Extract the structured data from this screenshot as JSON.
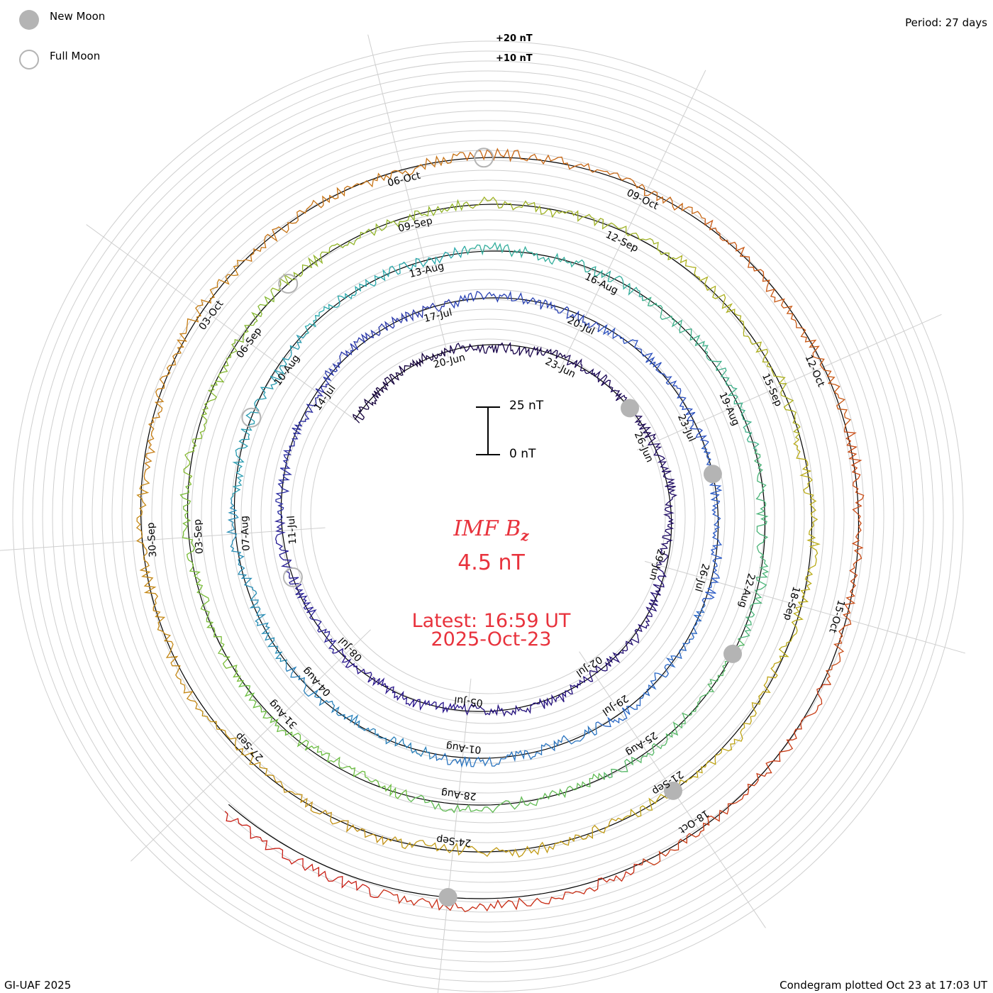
{
  "legend": {
    "new_moon_label": "New Moon",
    "full_moon_label": "Full Moon",
    "new_moon_color": "#b4b4b4",
    "full_moon_color": "#b4b4b4",
    "new_moon_icon": "filled-grey-circle",
    "full_moon_icon": "open-grey-circle"
  },
  "header": {
    "period_label": "Period: 27 days"
  },
  "footer": {
    "credit": "GI-UAF 2025",
    "plotted": "Condegram plotted Oct 23 at 17:03 UT"
  },
  "center": {
    "parameter": "IMF B",
    "parameter_subscript": "z",
    "value": "4.5 nT",
    "latest": "Latest: 16:59 UT",
    "latest_date": "2025-Oct-23",
    "scale_top_label": "25 nT",
    "scale_bottom_label": "0 nT",
    "text_color": "#e8323c"
  },
  "reference_labels": {
    "plus20": "+20 nT",
    "plus10": "+10 nT"
  },
  "chart_data": {
    "type": "line",
    "subtype": "condegram-spiral",
    "period_days": 27,
    "series_name": "IMF Bz",
    "unit": "nT",
    "time_range": [
      "2025-06-17",
      "2025-10-23T16:59"
    ],
    "latest_value": 4.5,
    "scale_bar_nT": [
      0,
      25
    ],
    "reference_levels_nT": [
      10,
      20
    ],
    "grid": true,
    "color_scale": "dark purple (oldest) to blue, teal, green, yellow, orange, red (newest)",
    "date_ticks": [
      "20-Jun",
      "23-Jun",
      "26-Jun",
      "29-Jun",
      "02-Jul",
      "05-Jul",
      "08-Jul",
      "11-Jul",
      "14-Jul",
      "17-Jul",
      "20-Jul",
      "23-Jul",
      "26-Jul",
      "29-Jul",
      "01-Aug",
      "04-Aug",
      "07-Aug",
      "10-Aug",
      "13-Aug",
      "16-Aug",
      "19-Aug",
      "22-Aug",
      "25-Aug",
      "28-Aug",
      "31-Aug",
      "03-Sep",
      "06-Sep",
      "09-Sep",
      "12-Sep",
      "15-Sep",
      "18-Sep",
      "21-Sep",
      "24-Sep",
      "27-Sep",
      "30-Sep",
      "03-Oct",
      "06-Oct",
      "09-Oct",
      "12-Oct",
      "15-Oct",
      "18-Oct"
    ],
    "bz_daily_nT": [
      -0.5,
      -0.8,
      1.2,
      0.5,
      -1.5,
      -2.0,
      0.8,
      1.0,
      -0.4,
      0.6,
      1.8,
      -1.2,
      -2.5,
      0.4,
      1.5,
      -0.8,
      2.0,
      0.3,
      -1.0,
      1.2,
      -0.5,
      0.9,
      -1.8,
      0.2,
      1.6,
      -0.7,
      0.4,
      -1.3,
      2.2,
      0.6,
      -0.9,
      1.4,
      -0.3,
      -2.1,
      0.8,
      1.1,
      -0.6,
      0.5,
      -1.4,
      1.9,
      0.2,
      -0.8,
      1.3,
      -1.1,
      0.7,
      2.4,
      -0.4,
      -1.6,
      0.9,
      0.3,
      -1.2,
      1.5,
      -0.7,
      0.6,
      -2.3,
      1.0,
      0.4,
      -0.5,
      1.7,
      -0.9,
      0.2,
      -1.5,
      1.2,
      0.8,
      -0.3,
      -1.9,
      2.1,
      0.5,
      -0.6,
      1.0,
      -1.2,
      0.3,
      1.8,
      -0.4,
      -2.6,
      1.4,
      0.7,
      -0.8,
      0.5,
      1.3,
      -1.7,
      0.2,
      2.0,
      -0.9,
      -0.3,
      1.1,
      -1.4,
      0.6,
      1.6,
      -0.5,
      0.9,
      -2.0,
      1.2,
      0.4,
      -1.1,
      2.3,
      -0.2,
      -0.7,
      1.5,
      -1.3,
      0.8,
      0.3,
      -1.6,
      1.9,
      -0.6,
      1.0,
      -2.4,
      0.7,
      1.4,
      -0.8,
      0.2,
      -1.0,
      1.7,
      0.5,
      -0.4,
      2.2,
      -1.5,
      0.9,
      1.3,
      -0.7,
      0.4,
      1.6,
      0.8,
      -0.5,
      2.0,
      3.1,
      4.5
    ],
    "new_moon_dates": [
      "2025-06-25",
      "2025-07-24",
      "2025-08-23",
      "2025-09-21",
      "2025-10-21"
    ],
    "full_moon_dates": [
      "2025-07-10",
      "2025-08-09",
      "2025-09-07",
      "2025-10-07"
    ]
  }
}
